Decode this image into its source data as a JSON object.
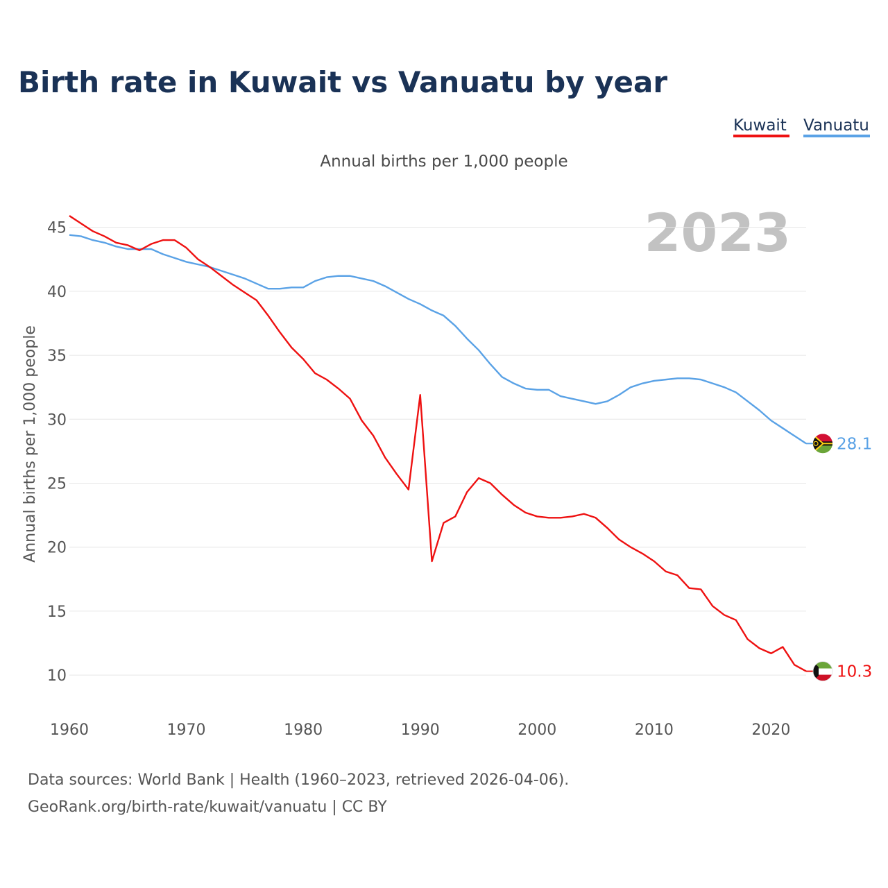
{
  "page": {
    "title": "Birth rate in Kuwait vs Vanuatu by year",
    "subtitle": "Annual births per 1,000 people",
    "year_watermark": "2023",
    "footer_line1": "Data sources: World Bank | Health (1960–2023, retrieved 2026-04-06).",
    "footer_line2": "GeoRank.org/birth-rate/kuwait/vanuatu | CC BY"
  },
  "legend": [
    {
      "name": "Kuwait",
      "color": "#ee1111"
    },
    {
      "name": "Vanuatu",
      "color": "#5aa2e6"
    }
  ],
  "chart_data": {
    "type": "line",
    "title": "Birth rate in Kuwait vs Vanuatu by year",
    "subtitle": "Annual births per 1,000 people",
    "xlabel": "",
    "ylabel": "Annual births per 1,000 people",
    "xlim": [
      1960,
      2023
    ],
    "ylim": [
      8,
      46.5
    ],
    "xticks": [
      1960,
      1970,
      1980,
      1990,
      2000,
      2010,
      2020
    ],
    "yticks": [
      10,
      15,
      20,
      25,
      30,
      35,
      40,
      45
    ],
    "grid": true,
    "legend_position": "top-right",
    "x": [
      1960,
      1961,
      1962,
      1963,
      1964,
      1965,
      1966,
      1967,
      1968,
      1969,
      1970,
      1971,
      1972,
      1973,
      1974,
      1975,
      1976,
      1977,
      1978,
      1979,
      1980,
      1981,
      1982,
      1983,
      1984,
      1985,
      1986,
      1987,
      1988,
      1989,
      1990,
      1991,
      1992,
      1993,
      1994,
      1995,
      1996,
      1997,
      1998,
      1999,
      2000,
      2001,
      2002,
      2003,
      2004,
      2005,
      2006,
      2007,
      2008,
      2009,
      2010,
      2011,
      2012,
      2013,
      2014,
      2015,
      2016,
      2017,
      2018,
      2019,
      2020,
      2021,
      2022,
      2023
    ],
    "series": [
      {
        "name": "Kuwait",
        "color": "#ee1111",
        "end_label": "10.3",
        "values": [
          45.9,
          45.3,
          44.7,
          44.3,
          43.8,
          43.6,
          43.2,
          43.7,
          44.0,
          44.0,
          43.4,
          42.5,
          41.9,
          41.2,
          40.5,
          39.9,
          39.3,
          38.1,
          36.8,
          35.6,
          34.7,
          33.6,
          33.1,
          32.4,
          31.6,
          29.9,
          28.7,
          27.0,
          25.7,
          24.5,
          31.9,
          18.9,
          21.9,
          22.4,
          24.3,
          25.4,
          25.0,
          24.1,
          23.3,
          22.7,
          22.4,
          22.3,
          22.3,
          22.4,
          22.6,
          22.3,
          21.5,
          20.6,
          20.0,
          19.5,
          18.9,
          18.1,
          17.8,
          16.8,
          16.7,
          15.4,
          14.7,
          14.3,
          12.8,
          12.1,
          11.7,
          12.2,
          10.8,
          10.3
        ]
      },
      {
        "name": "Vanuatu",
        "color": "#5aa2e6",
        "end_label": "28.1",
        "values": [
          44.4,
          44.3,
          44.0,
          43.8,
          43.5,
          43.3,
          43.3,
          43.3,
          42.9,
          42.6,
          42.3,
          42.1,
          41.9,
          41.6,
          41.3,
          41.0,
          40.6,
          40.2,
          40.2,
          40.3,
          40.3,
          40.8,
          41.1,
          41.2,
          41.2,
          41.0,
          40.8,
          40.4,
          39.9,
          39.4,
          39.0,
          38.5,
          38.1,
          37.3,
          36.3,
          35.4,
          34.3,
          33.3,
          32.8,
          32.4,
          32.3,
          32.3,
          31.8,
          31.6,
          31.4,
          31.2,
          31.4,
          31.9,
          32.5,
          32.8,
          33.0,
          33.1,
          33.2,
          33.2,
          33.1,
          32.8,
          32.5,
          32.1,
          31.4,
          30.7,
          29.9,
          29.3,
          28.7,
          28.1
        ]
      }
    ]
  }
}
